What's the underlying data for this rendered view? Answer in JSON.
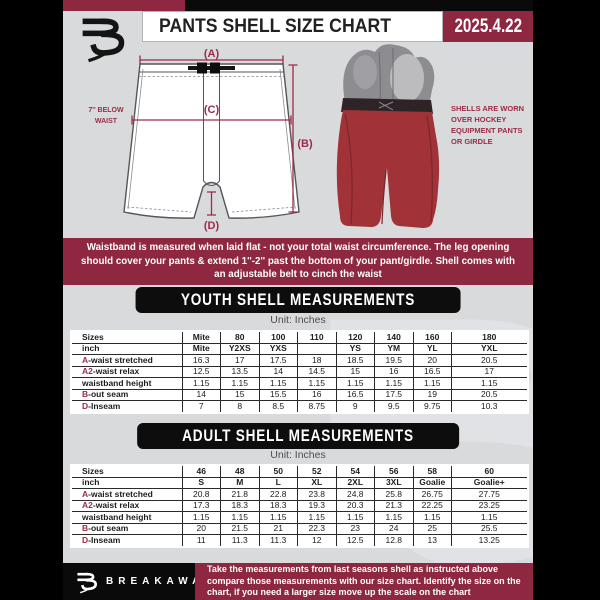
{
  "header": {
    "title": "PANTS SHELL SIZE CHART",
    "date": "2025.4.22"
  },
  "colors": {
    "maroon": "#8e2740",
    "accent": "#9c2b47",
    "page_bg": "#d9dadc",
    "banner_black": "#0d0d0d"
  },
  "diagram": {
    "label_a": "(A)",
    "label_b": "(B)",
    "label_c": "(C)",
    "label_d": "(D)",
    "waist_note": "7'' BELOW WAIST"
  },
  "photo": {
    "note": "SHELLS ARE WORN OVER HOCKEY EQUIPMENT PANTS OR GIRDLE"
  },
  "info_banner": {
    "text": "Waistband is measured when laid flat - not your total waist circumference. The leg opening should cover your pants & extend 1''-2'' past the bottom of your pant/girdle. Shell comes with an adjustable belt to cinch the waist"
  },
  "youth": {
    "title": "YOUTH SHELL MEASUREMENTS",
    "unit": "Unit: Inches",
    "rows": [
      {
        "prefix": "",
        "label": "Sizes",
        "header": true,
        "values": [
          "Mite",
          "80",
          "100",
          "110",
          "120",
          "140",
          "160",
          "180"
        ]
      },
      {
        "prefix": "",
        "label": "inch",
        "header": true,
        "values": [
          "Mite",
          "Y2XS",
          "YXS",
          "",
          "YS",
          "YM",
          "YL",
          "YXL"
        ]
      },
      {
        "prefix": "A",
        "label": "-waist stretched",
        "header": false,
        "values": [
          "16.3",
          "17",
          "17.5",
          "18",
          "18.5",
          "19.5",
          "20",
          "20.5"
        ]
      },
      {
        "prefix": "A2",
        "label": "-waist relax",
        "header": false,
        "values": [
          "12.5",
          "13.5",
          "14",
          "14.5",
          "15",
          "16",
          "16.5",
          "17"
        ]
      },
      {
        "prefix": "",
        "label": "waistband height",
        "header": false,
        "values": [
          "1.15",
          "1.15",
          "1.15",
          "1.15",
          "1.15",
          "1.15",
          "1.15",
          "1.15"
        ]
      },
      {
        "prefix": "B",
        "label": "-out seam",
        "header": false,
        "values": [
          "14",
          "15",
          "15.5",
          "16",
          "16.5",
          "17.5",
          "19",
          "20.5"
        ]
      },
      {
        "prefix": "D",
        "label": "-Inseam",
        "header": false,
        "values": [
          "7",
          "8",
          "8.5",
          "8.75",
          "9",
          "9.5",
          "9.75",
          "10.3"
        ]
      }
    ]
  },
  "adult": {
    "title": "ADULT SHELL MEASUREMENTS",
    "unit": "Unit: Inches",
    "rows": [
      {
        "prefix": "",
        "label": "Sizes",
        "header": true,
        "values": [
          "46",
          "48",
          "50",
          "52",
          "54",
          "56",
          "58",
          "60"
        ]
      },
      {
        "prefix": "",
        "label": "inch",
        "header": true,
        "values": [
          "S",
          "M",
          "L",
          "XL",
          "2XL",
          "3XL",
          "Goalie",
          "Goalie+"
        ]
      },
      {
        "prefix": "A",
        "label": "-waist stretched",
        "header": false,
        "values": [
          "20.8",
          "21.8",
          "22.8",
          "23.8",
          "24.8",
          "25.8",
          "26.75",
          "27.75"
        ]
      },
      {
        "prefix": "A2",
        "label": "-waist relax",
        "header": false,
        "values": [
          "17.3",
          "18.3",
          "18.3",
          "19.3",
          "20.3",
          "21.3",
          "22.25",
          "23.25"
        ]
      },
      {
        "prefix": "",
        "label": "waistband height",
        "header": false,
        "values": [
          "1.15",
          "1.15",
          "1.15",
          "1.15",
          "1.15",
          "1.15",
          "1.15",
          "1.15"
        ]
      },
      {
        "prefix": "B",
        "label": "-out seam",
        "header": false,
        "values": [
          "20",
          "21.5",
          "21",
          "22.3",
          "23",
          "24",
          "25",
          "25.5"
        ]
      },
      {
        "prefix": "D",
        "label": "-Inseam",
        "header": false,
        "values": [
          "11",
          "11.3",
          "11.3",
          "12",
          "12.5",
          "12.8",
          "13",
          "13.25"
        ]
      }
    ]
  },
  "footer": {
    "brand": "BREAKAWAY",
    "text": "Take the measurements from last seasons shell as instructed above compare those measurements with our size chart. Identify the size on the chart, if you need a larger size move up the scale on the chart"
  }
}
